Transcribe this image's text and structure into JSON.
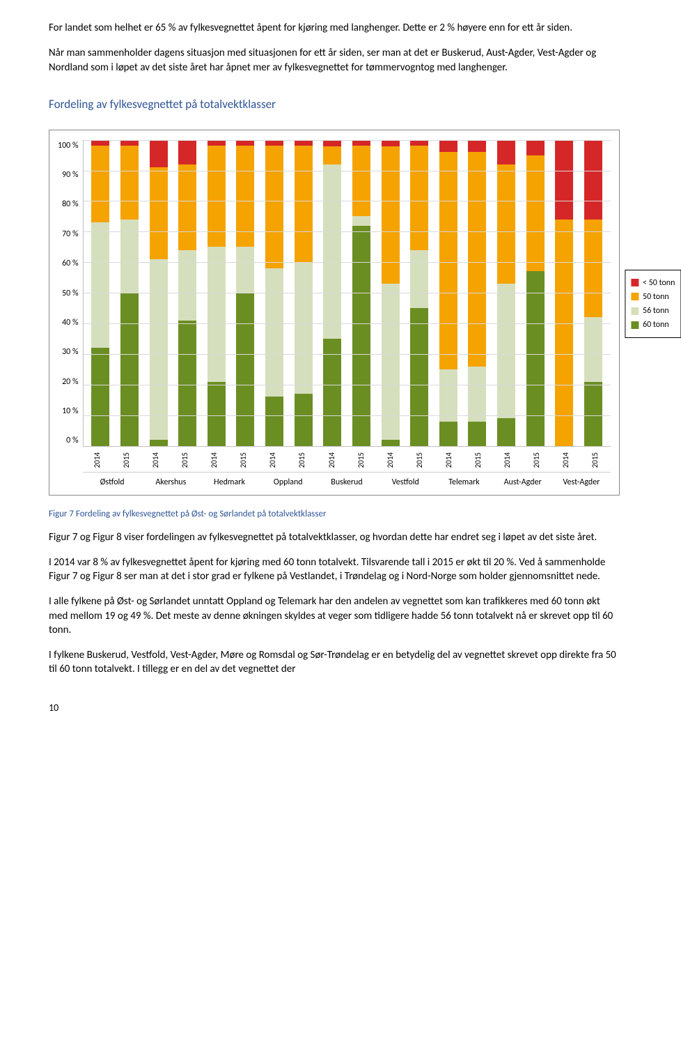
{
  "text": {
    "p1": "For landet som helhet er 65 % av fylkesvegnettet åpent for kjøring med langhenger. Dette er 2 % høyere enn for ett år siden.",
    "p2": "Når man sammenholder dagens situasjon med situasjonen for ett år siden, ser man at det er Buskerud, Aust-Agder, Vest-Agder og Nordland som i løpet av det siste året har åpnet mer av fylkesvegnettet for tømmervogntog med langhenger.",
    "chart_title": "Fordeling av fylkesvegnettet på totalvektklasser",
    "caption": "Figur 7 Fordeling av fylkesvegnettet på Øst- og Sørlandet på totalvektklasser",
    "p3": "Figur 7 og Figur 8 viser fordelingen av fylkesvegnettet på totalvektklasser, og hvordan dette har endret seg i løpet av det siste året.",
    "p4": "I 2014 var 8 % av fylkesvegnettet åpent for kjøring med 60 tonn totalvekt. Tilsvarende tall i 2015 er økt til 20 %. Ved å sammenholde Figur 7 og Figur 8 ser man at det i stor grad er fylkene på Vestlandet, i Trøndelag og i Nord-Norge som holder gjennomsnittet nede.",
    "p5": "I alle fylkene på Øst- og Sørlandet unntatt Oppland og Telemark har den andelen av vegnettet som kan trafikkeres med 60 tonn økt med mellom 19 og 49 %. Det meste av denne økningen skyldes at veger som tidligere hadde 56 tonn totalvekt nå er skrevet opp til 60 tonn.",
    "p6": "I fylkene Buskerud, Vestfold, Vest-Agder, Møre og Romsdal og Sør-Trøndelag er en betydelig del av vegnettet skrevet opp direkte fra 50 til 60 tonn totalvekt. I tillegg er en del av det vegnettet der",
    "page_num": "10"
  },
  "chart": {
    "type": "stacked-bar",
    "ylim": [
      0,
      100
    ],
    "ytick_step": 10,
    "ylabels": [
      "100 %",
      "90 %",
      "80 %",
      "70 %",
      "60 %",
      "50 %",
      "40 %",
      "30 %",
      "20 %",
      "10 %",
      "0 %"
    ],
    "categories": [
      "Østfold",
      "Akershus",
      "Hedmark",
      "Oppland",
      "Buskerud",
      "Vestfold",
      "Telemark",
      "Aust-Agder",
      "Vest-Agder"
    ],
    "years": [
      "2014",
      "2015"
    ],
    "series": [
      "60 tonn",
      "56 tonn",
      "50 tonn",
      "< 50 tonn"
    ],
    "colors": {
      "60 tonn": "#6b8e23",
      "56 tonn": "#d6dfbd",
      "50 tonn": "#f5a300",
      "< 50 tonn": "#d62728"
    },
    "legend_order": [
      "< 50 tonn",
      "50 tonn",
      "56 tonn",
      "60 tonn"
    ],
    "legend_labels": {
      "< 50 tonn": "< 50 tonn",
      "50 tonn": "50 tonn",
      "56 tonn": "56 tonn",
      "60 tonn": "60 tonn"
    },
    "data": [
      {
        "cat": "Østfold",
        "year": "2014",
        "60 tonn": 32,
        "56 tonn": 41,
        "50 tonn": 25,
        "< 50 tonn": 2
      },
      {
        "cat": "Østfold",
        "year": "2015",
        "60 tonn": 50,
        "56 tonn": 24,
        "50 tonn": 24,
        "< 50 tonn": 2
      },
      {
        "cat": "Akershus",
        "year": "2014",
        "60 tonn": 2,
        "56 tonn": 59,
        "50 tonn": 30,
        "< 50 tonn": 9
      },
      {
        "cat": "Akershus",
        "year": "2015",
        "60 tonn": 41,
        "56 tonn": 23,
        "50 tonn": 28,
        "< 50 tonn": 8
      },
      {
        "cat": "Hedmark",
        "year": "2014",
        "60 tonn": 21,
        "56 tonn": 44,
        "50 tonn": 33,
        "< 50 tonn": 2
      },
      {
        "cat": "Hedmark",
        "year": "2015",
        "60 tonn": 50,
        "56 tonn": 15,
        "50 tonn": 33,
        "< 50 tonn": 2
      },
      {
        "cat": "Oppland",
        "year": "2014",
        "60 tonn": 16,
        "56 tonn": 42,
        "50 tonn": 40,
        "< 50 tonn": 2
      },
      {
        "cat": "Oppland",
        "year": "2015",
        "60 tonn": 17,
        "56 tonn": 43,
        "50 tonn": 38,
        "< 50 tonn": 2
      },
      {
        "cat": "Buskerud",
        "year": "2014",
        "60 tonn": 35,
        "56 tonn": 57,
        "50 tonn": 6,
        "< 50 tonn": 2
      },
      {
        "cat": "Buskerud",
        "year": "2015",
        "60 tonn": 72,
        "56 tonn": 3,
        "50 tonn": 23,
        "< 50 tonn": 2
      },
      {
        "cat": "Vestfold",
        "year": "2014",
        "60 tonn": 2,
        "56 tonn": 51,
        "50 tonn": 45,
        "< 50 tonn": 2
      },
      {
        "cat": "Vestfold",
        "year": "2015",
        "60 tonn": 45,
        "56 tonn": 19,
        "50 tonn": 34,
        "< 50 tonn": 2
      },
      {
        "cat": "Telemark",
        "year": "2014",
        "60 tonn": 8,
        "56 tonn": 17,
        "50 tonn": 71,
        "< 50 tonn": 4
      },
      {
        "cat": "Telemark",
        "year": "2015",
        "60 tonn": 8,
        "56 tonn": 18,
        "50 tonn": 70,
        "< 50 tonn": 4
      },
      {
        "cat": "Aust-Agder",
        "year": "2014",
        "60 tonn": 9,
        "56 tonn": 44,
        "50 tonn": 39,
        "< 50 tonn": 8
      },
      {
        "cat": "Aust-Agder",
        "year": "2015",
        "60 tonn": 57,
        "56 tonn": 0,
        "50 tonn": 38,
        "< 50 tonn": 5
      },
      {
        "cat": "Vest-Agder",
        "year": "2014",
        "60 tonn": 0,
        "56 tonn": 0,
        "50 tonn": 74,
        "< 50 tonn": 26
      },
      {
        "cat": "Vest-Agder",
        "year": "2015",
        "60 tonn": 21,
        "56 tonn": 21,
        "50 tonn": 32,
        "< 50 tonn": 26
      }
    ],
    "background_color": "#ffffff",
    "grid_color": "#d9d9d9"
  }
}
